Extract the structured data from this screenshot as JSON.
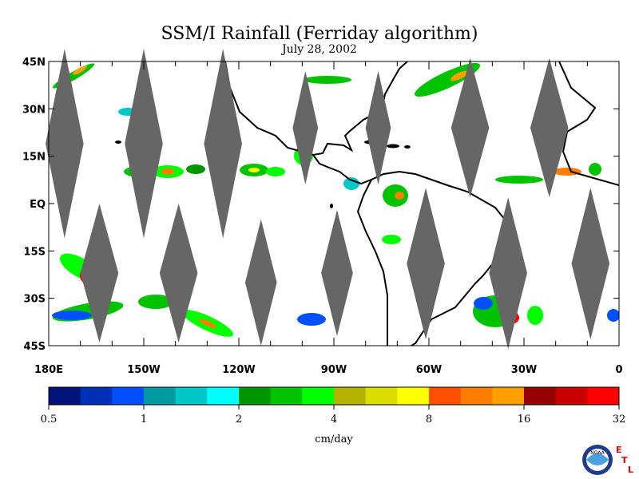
{
  "title": "SSM/I Rainfall (Ferriday algorithm)",
  "subtitle": "July 28, 2002",
  "map": {
    "lat_range": [
      -45,
      45
    ],
    "lon_range": [
      -180,
      0
    ],
    "lat_ticks": [
      {
        "value": 45,
        "label": "45N"
      },
      {
        "value": 30,
        "label": "30N"
      },
      {
        "value": 15,
        "label": "15N"
      },
      {
        "value": 0,
        "label": "EQ"
      },
      {
        "value": -15,
        "label": "15S"
      },
      {
        "value": -30,
        "label": "30S"
      },
      {
        "value": -45,
        "label": "45S"
      }
    ],
    "lon_ticks": [
      {
        "value": -180,
        "label": "180E"
      },
      {
        "value": -150,
        "label": "150W"
      },
      {
        "value": -120,
        "label": "120W"
      },
      {
        "value": -90,
        "label": "90W"
      },
      {
        "value": -60,
        "label": "60W"
      },
      {
        "value": -30,
        "label": "30W"
      },
      {
        "value": 0,
        "label": "0"
      }
    ],
    "no_data_color": "#666666",
    "coast_color": "#000000"
  },
  "colorbar": {
    "unit": "cm/day",
    "colors": [
      "#00137a",
      "#0030b8",
      "#0050ff",
      "#009ba0",
      "#00c8c8",
      "#00ffff",
      "#009600",
      "#00c300",
      "#00ff00",
      "#b4b400",
      "#dcdc00",
      "#ffff00",
      "#ff5000",
      "#ff7d00",
      "#ffa000",
      "#960000",
      "#c80000",
      "#ff0000"
    ],
    "labels": [
      "0.5",
      "1",
      "2",
      "4",
      "8",
      "16",
      "32"
    ]
  },
  "logo": {
    "text": "NOAA",
    "letters": [
      "E",
      "T",
      "L"
    ]
  }
}
